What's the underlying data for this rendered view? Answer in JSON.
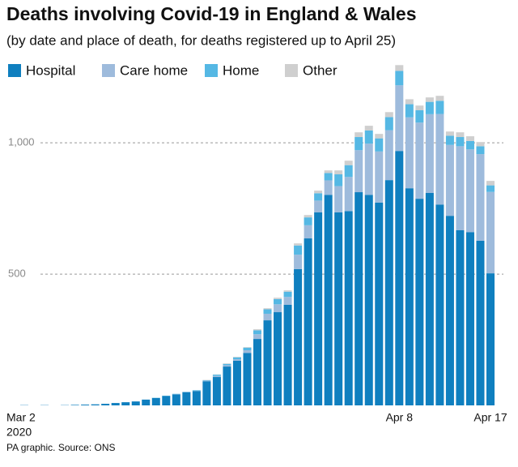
{
  "chart_data": {
    "type": "stacked_bar",
    "title": "Deaths involving Covid-19 in England & Wales",
    "subtitle": "(by date and place of death, for deaths registered up to April 25)",
    "source": "PA graphic. Source: ONS",
    "categories": [
      "Mar 2",
      null,
      null,
      null,
      null,
      null,
      null,
      null,
      null,
      null,
      null,
      null,
      null,
      null,
      null,
      null,
      null,
      null,
      null,
      null,
      null,
      null,
      null,
      null,
      null,
      null,
      null,
      null,
      null,
      null,
      null,
      null,
      null,
      null,
      null,
      null,
      null,
      "Apr 8",
      null,
      null,
      null,
      null,
      null,
      null,
      null,
      null,
      "Apr 17"
    ],
    "first_year": "2020",
    "series": [
      {
        "name": "Hospital",
        "color": "#0f7fbf",
        "values": [
          1,
          0,
          1,
          0,
          1,
          2,
          3,
          4,
          6,
          9,
          12,
          15,
          22,
          28,
          36,
          42,
          50,
          55,
          92,
          108,
          148,
          170,
          200,
          253,
          324,
          355,
          383,
          519,
          636,
          735,
          802,
          735,
          740,
          812,
          802,
          772,
          858,
          969,
          827,
          787,
          809,
          765,
          722,
          667,
          660,
          627,
          503
        ]
      },
      {
        "name": "Care home",
        "color": "#9ebbdc",
        "values": [
          0,
          0,
          0,
          0,
          0,
          0,
          0,
          0,
          0,
          0,
          0,
          0,
          0,
          0,
          0,
          1,
          1,
          1,
          2,
          4,
          5,
          6,
          10,
          18,
          25,
          30,
          30,
          55,
          50,
          45,
          55,
          100,
          130,
          160,
          195,
          195,
          190,
          250,
          270,
          290,
          300,
          345,
          270,
          320,
          315,
          330,
          310
        ]
      },
      {
        "name": "Home",
        "color": "#55b8e4",
        "values": [
          0,
          0,
          0,
          0,
          0,
          0,
          0,
          0,
          0,
          0,
          0,
          0,
          0,
          1,
          1,
          1,
          1,
          2,
          2,
          5,
          5,
          7,
          10,
          15,
          17,
          20,
          20,
          35,
          30,
          28,
          28,
          45,
          45,
          50,
          50,
          50,
          50,
          55,
          50,
          47,
          47,
          50,
          35,
          35,
          32,
          30,
          25
        ]
      },
      {
        "name": "Other",
        "color": "#cfcfcf",
        "values": [
          0,
          0,
          0,
          0,
          0,
          0,
          0,
          0,
          0,
          0,
          0,
          0,
          0,
          0,
          0,
          0,
          0,
          0,
          1,
          1,
          2,
          2,
          2,
          4,
          4,
          5,
          5,
          8,
          9,
          10,
          10,
          15,
          17,
          18,
          18,
          17,
          19,
          22,
          19,
          18,
          17,
          19,
          16,
          18,
          18,
          16,
          17
        ]
      }
    ],
    "ylim": [
      0,
      1300
    ],
    "yticks": [
      {
        "value": 500,
        "label": "500"
      },
      {
        "value": 1000,
        "label": "1,000"
      }
    ],
    "grid": true
  }
}
